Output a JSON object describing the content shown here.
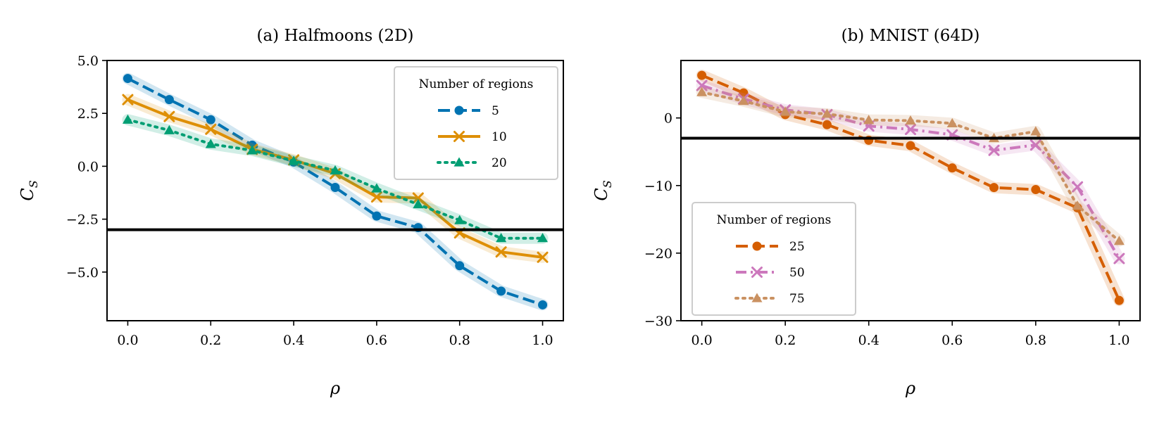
{
  "chart_data": [
    {
      "type": "line",
      "title": "(a) Halfmoons (2D)",
      "xlabel": "ρ",
      "ylabel": "C",
      "ylabel_sub": "S",
      "xlim": [
        -0.05,
        1.05
      ],
      "ylim": [
        -7.3,
        5.0
      ],
      "xticks": [
        0.0,
        0.2,
        0.4,
        0.6,
        0.8,
        1.0
      ],
      "xtick_labels": [
        "0.0",
        "0.2",
        "0.4",
        "0.6",
        "0.8",
        "1.0"
      ],
      "yticks": [
        5.0,
        2.5,
        0.0,
        -2.5,
        -5.0
      ],
      "ytick_labels": [
        "5.0",
        "2.5",
        "0.0",
        "−2.5",
        "−5.0"
      ],
      "hline": -3.0,
      "legend_title": "Number of regions",
      "legend_position": "top-right",
      "x": [
        0.0,
        0.1,
        0.2,
        0.3,
        0.4,
        0.5,
        0.6,
        0.7,
        0.8,
        0.9,
        1.0
      ],
      "series": [
        {
          "name": "5",
          "color": "#0173b2",
          "marker": "circle",
          "dash": "dashed",
          "values": [
            4.15,
            3.15,
            2.2,
            1.0,
            0.2,
            -1.0,
            -2.35,
            -2.9,
            -4.7,
            -5.9,
            -6.55
          ]
        },
        {
          "name": "10",
          "color": "#de8f05",
          "marker": "x",
          "dash": "solid",
          "values": [
            3.15,
            2.35,
            1.75,
            0.8,
            0.3,
            -0.35,
            -1.45,
            -1.5,
            -3.15,
            -4.05,
            -4.3
          ]
        },
        {
          "name": "20",
          "color": "#029e73",
          "marker": "triangle",
          "dash": "dotted",
          "values": [
            2.2,
            1.7,
            1.05,
            0.75,
            0.25,
            -0.2,
            -1.05,
            -1.8,
            -2.55,
            -3.4,
            -3.4
          ]
        }
      ]
    },
    {
      "type": "line",
      "title": "(b) MNIST (64D)",
      "xlabel": "ρ",
      "ylabel": "C",
      "ylabel_sub": "S",
      "xlim": [
        -0.05,
        1.05
      ],
      "ylim": [
        -30,
        8.5
      ],
      "xticks": [
        0.0,
        0.2,
        0.4,
        0.6,
        0.8,
        1.0
      ],
      "xtick_labels": [
        "0.0",
        "0.2",
        "0.4",
        "0.6",
        "0.8",
        "1.0"
      ],
      "yticks": [
        0,
        -10,
        -20,
        -30
      ],
      "ytick_labels": [
        "0",
        "−10",
        "−20",
        "−30"
      ],
      "hline": -3.0,
      "legend_title": "Number of regions",
      "legend_position": "bottom-left",
      "x": [
        0.0,
        0.1,
        0.2,
        0.3,
        0.4,
        0.5,
        0.6,
        0.7,
        0.8,
        0.9,
        1.0
      ],
      "series": [
        {
          "name": "25",
          "color": "#d55e00",
          "marker": "circle",
          "dash": "dashed",
          "values": [
            6.3,
            3.7,
            0.5,
            -1.0,
            -3.3,
            -4.1,
            -7.4,
            -10.3,
            -10.6,
            -13.3,
            -27.0
          ]
        },
        {
          "name": "50",
          "color": "#cc78bc",
          "marker": "x",
          "dash": "dashdot",
          "values": [
            4.8,
            2.8,
            1.2,
            0.5,
            -1.2,
            -1.7,
            -2.5,
            -4.8,
            -4.0,
            -10.2,
            -20.8
          ]
        },
        {
          "name": "75",
          "color": "#ca9161",
          "marker": "triangle",
          "dash": "dotted",
          "values": [
            3.8,
            2.5,
            0.9,
            0.6,
            -0.3,
            -0.4,
            -0.8,
            -3.0,
            -2.0,
            -13.0,
            -18.2
          ]
        }
      ]
    }
  ]
}
